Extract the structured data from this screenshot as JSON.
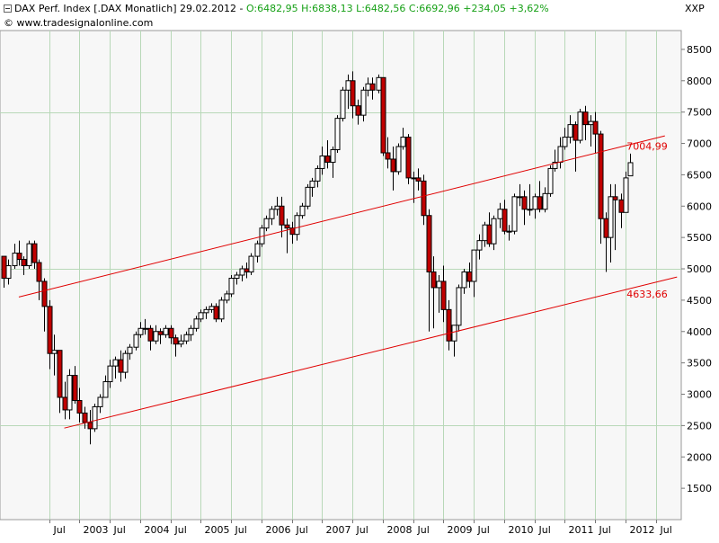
{
  "header": {
    "instrument": "DAX Perf. Index [.DAX  Monatlich]",
    "date": "29.02.2012",
    "quote": "O:6482,95 H:6838,13 L:6482,56 C:6692,96 +234,05 +3,62%",
    "copyright": "© www.tradesignalonline.com",
    "axis_name": "XXP"
  },
  "colors": {
    "up": "#ffffff",
    "down": "#c00000",
    "wick": "#000000",
    "channel": "#e00000",
    "grid": "#b8d8b8",
    "plot_bg": "#f7f7f7"
  },
  "chart_data": {
    "type": "candlestick",
    "title": "DAX Perf. Index [.DAX  Monatlich]",
    "ylim": [
      1000,
      8800
    ],
    "y_ticks": [
      1500,
      2000,
      2500,
      3000,
      3500,
      4000,
      4500,
      5000,
      5500,
      6000,
      6500,
      7000,
      7500,
      8000,
      8500
    ],
    "y_tick_labels": [
      "1500",
      "2000",
      "2500",
      "3000",
      "3500",
      "4000",
      "4500",
      "5000",
      "5500",
      "6000",
      "6500",
      "7000",
      "7500",
      "8000",
      "8500"
    ],
    "x_labels": [
      {
        "t": 2002.5,
        "label": "Jul"
      },
      {
        "t": 2003.0,
        "label": "2003"
      },
      {
        "t": 2003.5,
        "label": "Jul"
      },
      {
        "t": 2004.0,
        "label": "2004"
      },
      {
        "t": 2004.5,
        "label": "Jul"
      },
      {
        "t": 2005.0,
        "label": "2005"
      },
      {
        "t": 2005.5,
        "label": "Jul"
      },
      {
        "t": 2006.0,
        "label": "2006"
      },
      {
        "t": 2006.5,
        "label": "Jul"
      },
      {
        "t": 2007.0,
        "label": "2007"
      },
      {
        "t": 2007.5,
        "label": "Jul"
      },
      {
        "t": 2008.0,
        "label": "2008"
      },
      {
        "t": 2008.5,
        "label": "Jul"
      },
      {
        "t": 2009.0,
        "label": "2009"
      },
      {
        "t": 2009.5,
        "label": "Jul"
      },
      {
        "t": 2010.0,
        "label": "2010"
      },
      {
        "t": 2010.5,
        "label": "Jul"
      },
      {
        "t": 2011.0,
        "label": "2011"
      },
      {
        "t": 2011.5,
        "label": "Jul"
      },
      {
        "t": 2012.0,
        "label": "2012"
      },
      {
        "t": 2012.5,
        "label": "Jul"
      }
    ],
    "horizontal_lines": [
      2500,
      5000,
      7500
    ],
    "channel_lines": [
      {
        "name": "upper",
        "t0": 2002.0,
        "v0": 4550,
        "t1": 2012.65,
        "v1": 7120,
        "label": "7004,99",
        "label_t": 2012.02,
        "label_v": 6960
      },
      {
        "name": "lower",
        "t0": 2002.75,
        "v0": 2460,
        "t1": 2012.85,
        "v1": 4870,
        "label": "4633,66",
        "label_t": 2012.02,
        "label_v": 4600
      }
    ],
    "candles": [
      {
        "t": 2001.75,
        "o": 5200,
        "h": 5200,
        "l": 4700,
        "c": 4850
      },
      {
        "t": 2001.83,
        "o": 4850,
        "h": 5150,
        "l": 4750,
        "c": 5050
      },
      {
        "t": 2001.92,
        "o": 5050,
        "h": 5400,
        "l": 5000,
        "c": 5250
      },
      {
        "t": 2002.0,
        "o": 5250,
        "h": 5450,
        "l": 5050,
        "c": 5150
      },
      {
        "t": 2002.08,
        "o": 5150,
        "h": 5200,
        "l": 4900,
        "c": 5050
      },
      {
        "t": 2002.17,
        "o": 5050,
        "h": 5450,
        "l": 5000,
        "c": 5400
      },
      {
        "t": 2002.25,
        "o": 5400,
        "h": 5450,
        "l": 5000,
        "c": 5100
      },
      {
        "t": 2002.33,
        "o": 5100,
        "h": 5150,
        "l": 4500,
        "c": 4800
      },
      {
        "t": 2002.42,
        "o": 4800,
        "h": 4850,
        "l": 4000,
        "c": 4400
      },
      {
        "t": 2002.5,
        "o": 4400,
        "h": 4500,
        "l": 3400,
        "c": 3650
      },
      {
        "t": 2002.58,
        "o": 3650,
        "h": 3950,
        "l": 3300,
        "c": 3700
      },
      {
        "t": 2002.67,
        "o": 3700,
        "h": 3700,
        "l": 2700,
        "c": 2950
      },
      {
        "t": 2002.75,
        "o": 2950,
        "h": 3200,
        "l": 2600,
        "c": 2750
      },
      {
        "t": 2002.83,
        "o": 2750,
        "h": 3400,
        "l": 2600,
        "c": 3300
      },
      {
        "t": 2002.92,
        "o": 3300,
        "h": 3450,
        "l": 2850,
        "c": 2900
      },
      {
        "t": 2003.0,
        "o": 2900,
        "h": 3100,
        "l": 2550,
        "c": 2700
      },
      {
        "t": 2003.08,
        "o": 2700,
        "h": 2800,
        "l": 2450,
        "c": 2550
      },
      {
        "t": 2003.17,
        "o": 2550,
        "h": 2750,
        "l": 2200,
        "c": 2450
      },
      {
        "t": 2003.25,
        "o": 2450,
        "h": 2850,
        "l": 2400,
        "c": 2800
      },
      {
        "t": 2003.33,
        "o": 2800,
        "h": 3000,
        "l": 2700,
        "c": 2950
      },
      {
        "t": 2003.42,
        "o": 2950,
        "h": 3300,
        "l": 2950,
        "c": 3200
      },
      {
        "t": 2003.5,
        "o": 3200,
        "h": 3550,
        "l": 3100,
        "c": 3450
      },
      {
        "t": 2003.58,
        "o": 3450,
        "h": 3600,
        "l": 3250,
        "c": 3550
      },
      {
        "t": 2003.67,
        "o": 3550,
        "h": 3700,
        "l": 3200,
        "c": 3350
      },
      {
        "t": 2003.75,
        "o": 3350,
        "h": 3700,
        "l": 3250,
        "c": 3650
      },
      {
        "t": 2003.83,
        "o": 3650,
        "h": 3800,
        "l": 3550,
        "c": 3750
      },
      {
        "t": 2003.92,
        "o": 3750,
        "h": 4000,
        "l": 3700,
        "c": 3950
      },
      {
        "t": 2004.0,
        "o": 3950,
        "h": 4150,
        "l": 3900,
        "c": 4050
      },
      {
        "t": 2004.08,
        "o": 4050,
        "h": 4200,
        "l": 3950,
        "c": 4050
      },
      {
        "t": 2004.17,
        "o": 4050,
        "h": 4100,
        "l": 3700,
        "c": 3850
      },
      {
        "t": 2004.25,
        "o": 3850,
        "h": 4100,
        "l": 3800,
        "c": 4000
      },
      {
        "t": 2004.33,
        "o": 4000,
        "h": 4050,
        "l": 3800,
        "c": 3950
      },
      {
        "t": 2004.42,
        "o": 3950,
        "h": 4100,
        "l": 3900,
        "c": 4050
      },
      {
        "t": 2004.5,
        "o": 4050,
        "h": 4100,
        "l": 3800,
        "c": 3900
      },
      {
        "t": 2004.58,
        "o": 3900,
        "h": 3950,
        "l": 3600,
        "c": 3800
      },
      {
        "t": 2004.67,
        "o": 3800,
        "h": 3950,
        "l": 3750,
        "c": 3850
      },
      {
        "t": 2004.75,
        "o": 3850,
        "h": 4000,
        "l": 3800,
        "c": 3950
      },
      {
        "t": 2004.83,
        "o": 3950,
        "h": 4100,
        "l": 3850,
        "c": 4050
      },
      {
        "t": 2004.92,
        "o": 4050,
        "h": 4250,
        "l": 4000,
        "c": 4200
      },
      {
        "t": 2005.0,
        "o": 4200,
        "h": 4350,
        "l": 4150,
        "c": 4300
      },
      {
        "t": 2005.08,
        "o": 4300,
        "h": 4400,
        "l": 4200,
        "c": 4350
      },
      {
        "t": 2005.17,
        "o": 4350,
        "h": 4450,
        "l": 4300,
        "c": 4400
      },
      {
        "t": 2005.25,
        "o": 4400,
        "h": 4450,
        "l": 4150,
        "c": 4200
      },
      {
        "t": 2005.33,
        "o": 4200,
        "h": 4550,
        "l": 4150,
        "c": 4500
      },
      {
        "t": 2005.42,
        "o": 4500,
        "h": 4650,
        "l": 4450,
        "c": 4600
      },
      {
        "t": 2005.5,
        "o": 4600,
        "h": 4900,
        "l": 4550,
        "c": 4850
      },
      {
        "t": 2005.58,
        "o": 4850,
        "h": 4950,
        "l": 4750,
        "c": 4900
      },
      {
        "t": 2005.67,
        "o": 4900,
        "h": 5050,
        "l": 4800,
        "c": 5000
      },
      {
        "t": 2005.75,
        "o": 5000,
        "h": 5100,
        "l": 4850,
        "c": 4950
      },
      {
        "t": 2005.83,
        "o": 4950,
        "h": 5250,
        "l": 4900,
        "c": 5200
      },
      {
        "t": 2005.92,
        "o": 5200,
        "h": 5450,
        "l": 5100,
        "c": 5400
      },
      {
        "t": 2006.0,
        "o": 5400,
        "h": 5700,
        "l": 5350,
        "c": 5650
      },
      {
        "t": 2006.08,
        "o": 5650,
        "h": 5850,
        "l": 5600,
        "c": 5800
      },
      {
        "t": 2006.17,
        "o": 5800,
        "h": 6000,
        "l": 5700,
        "c": 5950
      },
      {
        "t": 2006.25,
        "o": 5950,
        "h": 6150,
        "l": 5850,
        "c": 6000
      },
      {
        "t": 2006.33,
        "o": 6000,
        "h": 6150,
        "l": 5500,
        "c": 5700
      },
      {
        "t": 2006.42,
        "o": 5700,
        "h": 5800,
        "l": 5250,
        "c": 5650
      },
      {
        "t": 2006.5,
        "o": 5650,
        "h": 5750,
        "l": 5400,
        "c": 5550
      },
      {
        "t": 2006.58,
        "o": 5550,
        "h": 5900,
        "l": 5450,
        "c": 5850
      },
      {
        "t": 2006.67,
        "o": 5850,
        "h": 6050,
        "l": 5800,
        "c": 6000
      },
      {
        "t": 2006.75,
        "o": 6000,
        "h": 6350,
        "l": 5950,
        "c": 6300
      },
      {
        "t": 2006.83,
        "o": 6300,
        "h": 6450,
        "l": 6150,
        "c": 6400
      },
      {
        "t": 2006.92,
        "o": 6400,
        "h": 6650,
        "l": 6300,
        "c": 6600
      },
      {
        "t": 2007.0,
        "o": 6600,
        "h": 6950,
        "l": 6500,
        "c": 6800
      },
      {
        "t": 2007.08,
        "o": 6800,
        "h": 7050,
        "l": 6600,
        "c": 6700
      },
      {
        "t": 2007.17,
        "o": 6700,
        "h": 6950,
        "l": 6450,
        "c": 6900
      },
      {
        "t": 2007.25,
        "o": 6900,
        "h": 7450,
        "l": 6850,
        "c": 7400
      },
      {
        "t": 2007.33,
        "o": 7400,
        "h": 7900,
        "l": 7350,
        "c": 7850
      },
      {
        "t": 2007.42,
        "o": 7850,
        "h": 8100,
        "l": 7550,
        "c": 8000
      },
      {
        "t": 2007.5,
        "o": 8000,
        "h": 8150,
        "l": 7400,
        "c": 7600
      },
      {
        "t": 2007.58,
        "o": 7600,
        "h": 7700,
        "l": 7300,
        "c": 7450
      },
      {
        "t": 2007.67,
        "o": 7450,
        "h": 7900,
        "l": 7350,
        "c": 7850
      },
      {
        "t": 2007.75,
        "o": 7850,
        "h": 8050,
        "l": 7750,
        "c": 7950
      },
      {
        "t": 2007.83,
        "o": 7950,
        "h": 8050,
        "l": 7700,
        "c": 7850
      },
      {
        "t": 2007.92,
        "o": 7850,
        "h": 8100,
        "l": 7800,
        "c": 8050
      },
      {
        "t": 2008.0,
        "o": 8050,
        "h": 8050,
        "l": 6800,
        "c": 6850
      },
      {
        "t": 2008.08,
        "o": 6850,
        "h": 7100,
        "l": 6600,
        "c": 6750
      },
      {
        "t": 2008.17,
        "o": 6750,
        "h": 6950,
        "l": 6250,
        "c": 6550
      },
      {
        "t": 2008.25,
        "o": 6550,
        "h": 7000,
        "l": 6500,
        "c": 6950
      },
      {
        "t": 2008.33,
        "o": 6950,
        "h": 7250,
        "l": 6900,
        "c": 7100
      },
      {
        "t": 2008.42,
        "o": 7100,
        "h": 7150,
        "l": 6350,
        "c": 6450
      },
      {
        "t": 2008.5,
        "o": 6450,
        "h": 6550,
        "l": 6050,
        "c": 6450
      },
      {
        "t": 2008.58,
        "o": 6450,
        "h": 6600,
        "l": 6250,
        "c": 6400
      },
      {
        "t": 2008.67,
        "o": 6400,
        "h": 6500,
        "l": 5700,
        "c": 5850
      },
      {
        "t": 2008.75,
        "o": 5850,
        "h": 5950,
        "l": 4000,
        "c": 4950
      },
      {
        "t": 2008.83,
        "o": 4950,
        "h": 5200,
        "l": 4050,
        "c": 4700
      },
      {
        "t": 2008.92,
        "o": 4700,
        "h": 4900,
        "l": 4300,
        "c": 4800
      },
      {
        "t": 2009.0,
        "o": 4800,
        "h": 5050,
        "l": 4150,
        "c": 4350
      },
      {
        "t": 2009.08,
        "o": 4350,
        "h": 4500,
        "l": 3700,
        "c": 3850
      },
      {
        "t": 2009.17,
        "o": 3850,
        "h": 4100,
        "l": 3600,
        "c": 4100
      },
      {
        "t": 2009.25,
        "o": 4100,
        "h": 4750,
        "l": 4000,
        "c": 4700
      },
      {
        "t": 2009.33,
        "o": 4700,
        "h": 5000,
        "l": 4600,
        "c": 4950
      },
      {
        "t": 2009.42,
        "o": 4950,
        "h": 5100,
        "l": 4700,
        "c": 4800
      },
      {
        "t": 2009.5,
        "o": 4800,
        "h": 5300,
        "l": 4550,
        "c": 5300
      },
      {
        "t": 2009.58,
        "o": 5300,
        "h": 5550,
        "l": 5150,
        "c": 5450
      },
      {
        "t": 2009.67,
        "o": 5450,
        "h": 5750,
        "l": 5350,
        "c": 5700
      },
      {
        "t": 2009.75,
        "o": 5700,
        "h": 5900,
        "l": 5350,
        "c": 5400
      },
      {
        "t": 2009.83,
        "o": 5400,
        "h": 5850,
        "l": 5300,
        "c": 5800
      },
      {
        "t": 2009.92,
        "o": 5800,
        "h": 6050,
        "l": 5650,
        "c": 5950
      },
      {
        "t": 2010.0,
        "o": 5950,
        "h": 6100,
        "l": 5550,
        "c": 5600
      },
      {
        "t": 2010.08,
        "o": 5600,
        "h": 5700,
        "l": 5450,
        "c": 5600
      },
      {
        "t": 2010.17,
        "o": 5600,
        "h": 6200,
        "l": 5550,
        "c": 6150
      },
      {
        "t": 2010.25,
        "o": 6150,
        "h": 6350,
        "l": 6000,
        "c": 6150
      },
      {
        "t": 2010.33,
        "o": 6150,
        "h": 6250,
        "l": 5700,
        "c": 5950
      },
      {
        "t": 2010.42,
        "o": 5950,
        "h": 6350,
        "l": 5850,
        "c": 5950
      },
      {
        "t": 2010.5,
        "o": 5950,
        "h": 6200,
        "l": 5800,
        "c": 6150
      },
      {
        "t": 2010.58,
        "o": 6150,
        "h": 6400,
        "l": 5900,
        "c": 5950
      },
      {
        "t": 2010.67,
        "o": 5950,
        "h": 6300,
        "l": 5900,
        "c": 6200
      },
      {
        "t": 2010.75,
        "o": 6200,
        "h": 6650,
        "l": 6150,
        "c": 6600
      },
      {
        "t": 2010.83,
        "o": 6600,
        "h": 6900,
        "l": 6550,
        "c": 6700
      },
      {
        "t": 2010.92,
        "o": 6700,
        "h": 7100,
        "l": 6600,
        "c": 6950
      },
      {
        "t": 2011.0,
        "o": 6950,
        "h": 7250,
        "l": 6900,
        "c": 7100
      },
      {
        "t": 2011.08,
        "o": 7100,
        "h": 7450,
        "l": 7000,
        "c": 7300
      },
      {
        "t": 2011.17,
        "o": 7300,
        "h": 7350,
        "l": 6550,
        "c": 7050
      },
      {
        "t": 2011.25,
        "o": 7050,
        "h": 7550,
        "l": 7000,
        "c": 7500
      },
      {
        "t": 2011.33,
        "o": 7500,
        "h": 7600,
        "l": 7050,
        "c": 7300
      },
      {
        "t": 2011.42,
        "o": 7300,
        "h": 7450,
        "l": 6950,
        "c": 7350
      },
      {
        "t": 2011.5,
        "o": 7350,
        "h": 7500,
        "l": 6850,
        "c": 7150
      },
      {
        "t": 2011.58,
        "o": 7150,
        "h": 7200,
        "l": 5400,
        "c": 5800
      },
      {
        "t": 2011.67,
        "o": 5800,
        "h": 5900,
        "l": 4950,
        "c": 5500
      },
      {
        "t": 2011.75,
        "o": 5500,
        "h": 6350,
        "l": 5100,
        "c": 6150
      },
      {
        "t": 2011.83,
        "o": 6150,
        "h": 6350,
        "l": 5300,
        "c": 6100
      },
      {
        "t": 2011.92,
        "o": 6100,
        "h": 6200,
        "l": 5650,
        "c": 5900
      },
      {
        "t": 2012.0,
        "o": 5900,
        "h": 6550,
        "l": 5900,
        "c": 6450
      },
      {
        "t": 2012.08,
        "o": 6482.95,
        "h": 6838.13,
        "l": 6482.56,
        "c": 6692.96
      }
    ]
  }
}
